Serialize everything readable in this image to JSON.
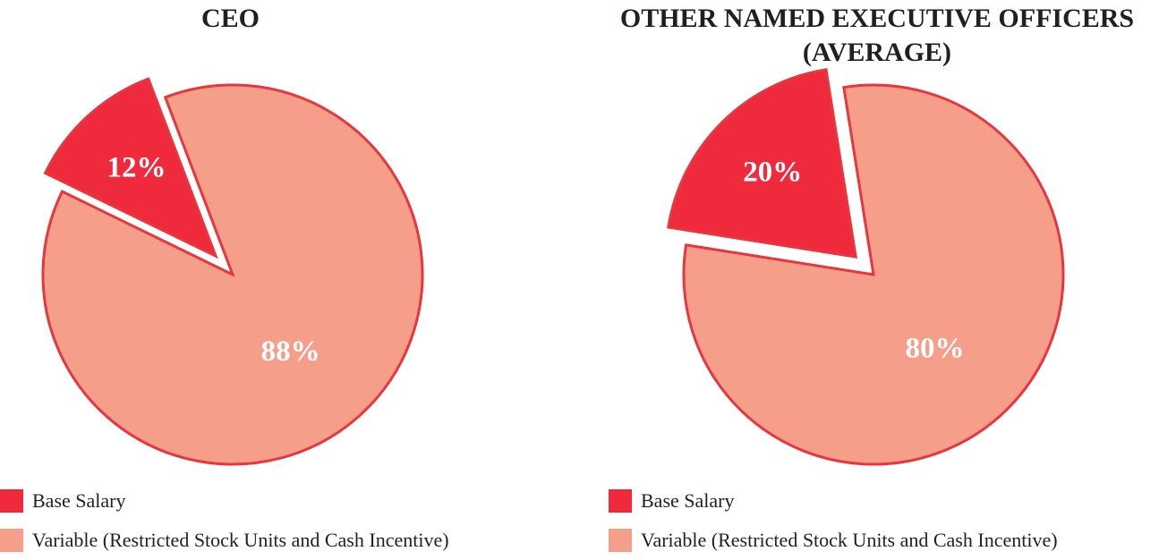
{
  "colors": {
    "base_salary": "#ee2a3c",
    "variable": "#f59e89",
    "outline": "#e8363f"
  },
  "chart_data": [
    {
      "type": "pie",
      "title": "CEO",
      "slices": [
        {
          "name": "Base Salary",
          "value": 12,
          "label": "12%",
          "exploded": true
        },
        {
          "name": "Variable (Restricted Stock Units and Cash Incentive)",
          "value": 88,
          "label": "88%",
          "exploded": false
        }
      ],
      "legend": [
        "Base Salary",
        "Variable (Restricted Stock Units and Cash Incentive)"
      ],
      "legend_position": "bottom-left"
    },
    {
      "type": "pie",
      "title": "OTHER NAMED EXECUTIVE OFFICERS (AVERAGE)",
      "slices": [
        {
          "name": "Base Salary",
          "value": 20,
          "label": "20%",
          "exploded": true
        },
        {
          "name": "Variable (Restricted Stock Units and Cash Incentive)",
          "value": 80,
          "label": "80%",
          "exploded": false
        }
      ],
      "legend": [
        "Base Salary",
        "Variable (Restricted Stock Units and Cash Incentive)"
      ],
      "legend_position": "bottom-left"
    }
  ]
}
